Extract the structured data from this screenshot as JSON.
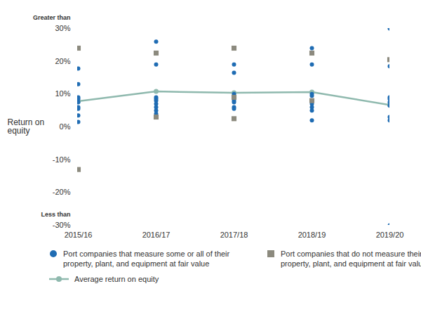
{
  "chart_data": {
    "type": "scatter",
    "y_label": "Return on equity",
    "categories": [
      "2015/16",
      "2016/17",
      "2017/18",
      "2018/19",
      "2019/20"
    ],
    "series": [
      {
        "name": "Port companies that measure some or all of their property, plant, and equipment at fair value",
        "type": "scatter",
        "color": "#1f6cb3",
        "marker": "circle",
        "values": [
          [
            17.8,
            13,
            9,
            8.5,
            7.5,
            6,
            5.5,
            3.5,
            1.5
          ],
          [
            26,
            19,
            9,
            8.5,
            8,
            7,
            6,
            5,
            4
          ],
          [
            19,
            16.5,
            10,
            9.5,
            8,
            7.5,
            6,
            5.5
          ],
          [
            24,
            19,
            10,
            9.5,
            7,
            6,
            5,
            2
          ],
          [
            30,
            18.5,
            9,
            8.5,
            7.5,
            6.5,
            3,
            2,
            -30
          ]
        ]
      },
      {
        "name": "Port companies that do not measure their property, plant, and equipment at fair value",
        "type": "scatter",
        "color": "#8c8a7e",
        "marker": "square",
        "values": [
          [
            24,
            -13
          ],
          [
            22.5,
            3
          ],
          [
            24,
            9,
            2.5
          ],
          [
            22.5,
            8
          ],
          [
            20.5
          ]
        ]
      },
      {
        "name": "Average return on equity",
        "type": "line",
        "color": "#8fb9ae",
        "marker": "circle",
        "values": [
          7.8,
          10.8,
          10.4,
          10.6,
          6.7
        ]
      }
    ],
    "ylim": [
      -30,
      30
    ],
    "yticks": [
      {
        "value": -30,
        "label": "-30%"
      },
      {
        "value": -20,
        "label": "-20%"
      },
      {
        "value": -10,
        "label": "-10%"
      },
      {
        "value": 0,
        "label": "0%"
      },
      {
        "value": 10,
        "label": "10%"
      },
      {
        "value": 20,
        "label": "20%"
      },
      {
        "value": 30,
        "label": "30%"
      }
    ],
    "annotations": [
      {
        "text": "Greater than",
        "y": 30
      },
      {
        "text": "Less than",
        "y": -30
      }
    ],
    "grid": false,
    "legend": "bottom"
  }
}
